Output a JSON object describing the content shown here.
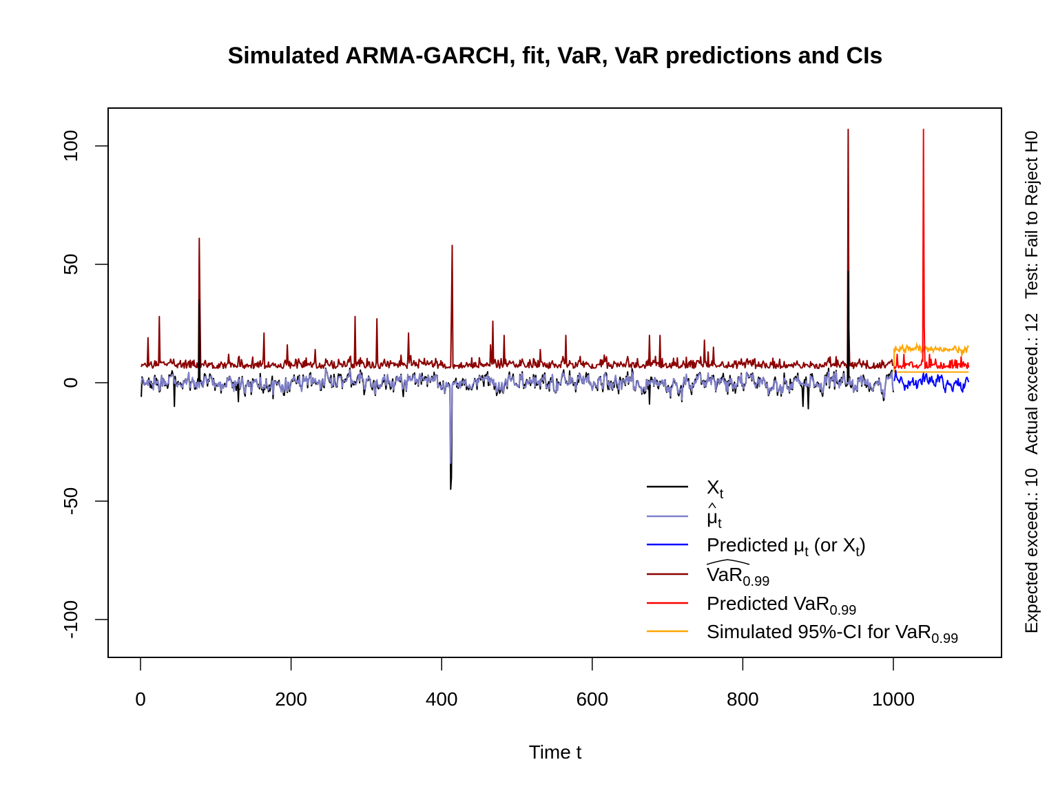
{
  "chart_data": {
    "type": "line",
    "title": "Simulated ARMA-GARCH, fit, VaR, VaR predictions and CIs",
    "xlabel": "Time t",
    "ylabel": "",
    "xlim": [
      -35,
      1150
    ],
    "ylim": [
      -116,
      116
    ],
    "x_ticks": [
      0,
      200,
      400,
      600,
      800,
      1000
    ],
    "x_tick_labels": [
      "0",
      "200",
      "400",
      "600",
      "800",
      "1000"
    ],
    "y_ticks": [
      -100,
      -50,
      0,
      50,
      100
    ],
    "y_tick_labels": [
      "-100",
      "-50",
      "0",
      "50",
      "100"
    ],
    "grid": false,
    "legend_position": "bottom-right",
    "legend": [
      {
        "key": "X",
        "sub": "t",
        "pre": "",
        "post": "",
        "accent": "",
        "color": "#000000"
      },
      {
        "key": "μ",
        "sub": "t",
        "pre": "",
        "post": "",
        "accent": "hat",
        "color": "#7f7fcc"
      },
      {
        "key": "Predicted μ",
        "sub": "t",
        "pre": "",
        "post": " (or X",
        "post_sub": "t",
        "post_tail": ")",
        "accent": "",
        "color": "#0000ff"
      },
      {
        "key": "VaR",
        "sub": "0.99",
        "pre": "",
        "post": "",
        "accent": "widehat",
        "color": "#8b0000"
      },
      {
        "key": "Predicted VaR",
        "sub": "0.99",
        "pre": "",
        "post": "",
        "accent": "",
        "color": "#ff0000"
      },
      {
        "key": "Simulated 95%-CI for VaR",
        "sub": "0.99",
        "pre": "",
        "post": "",
        "accent": "",
        "color": "#ffa500"
      }
    ],
    "side_annotation": "Expected exceed.: 10   Actual exceed.: 12   Test: Fail to Reject H0",
    "fit_range": [
      1,
      1000
    ],
    "prediction_range": [
      1001,
      1100
    ],
    "series": [
      {
        "name": "X_t",
        "color": "#000000",
        "baseline": 0,
        "noise_sd": 2.2,
        "spikes": [
          [
            1,
            -6
          ],
          [
            45,
            -10
          ],
          [
            78,
            35
          ],
          [
            130,
            -8
          ],
          [
            412,
            -45
          ],
          [
            413,
            -40
          ],
          [
            570,
            5
          ],
          [
            676,
            -9
          ],
          [
            880,
            -10
          ],
          [
            887,
            -11
          ],
          [
            940,
            47
          ]
        ]
      },
      {
        "name": "mu_hat_t",
        "color": "#7f7fcc",
        "baseline": 0,
        "noise_sd": 1.8,
        "spikes": [
          [
            412,
            -34
          ],
          [
            413,
            -20
          ]
        ]
      },
      {
        "name": "VaR_hat_0.99",
        "color": "#8b0000",
        "baseline": 6,
        "spikes": [
          [
            10,
            19
          ],
          [
            25,
            28
          ],
          [
            78,
            61
          ],
          [
            79,
            32
          ],
          [
            164,
            21
          ],
          [
            195,
            16
          ],
          [
            232,
            14
          ],
          [
            285,
            28
          ],
          [
            314,
            27
          ],
          [
            356,
            21
          ],
          [
            413,
            30
          ],
          [
            414,
            58
          ],
          [
            465,
            16
          ],
          [
            468,
            26
          ],
          [
            483,
            20
          ],
          [
            531,
            14
          ],
          [
            565,
            20
          ],
          [
            676,
            20
          ],
          [
            690,
            20
          ],
          [
            749,
            18
          ],
          [
            761,
            15
          ],
          [
            940,
            107
          ],
          [
            941,
            23
          ],
          [
            955,
            10
          ]
        ]
      },
      {
        "name": "Predicted_mu_t",
        "color": "#0000ff",
        "baseline": 0,
        "noise_sd": 1.5,
        "spikes": [
          [
            1040,
            4
          ]
        ]
      },
      {
        "name": "Predicted_VaR_0.99",
        "color": "#ff0000",
        "baseline": 6,
        "spikes": [
          [
            1005,
            12
          ],
          [
            1014,
            12
          ],
          [
            1040,
            107
          ],
          [
            1041,
            24
          ],
          [
            1048,
            12
          ],
          [
            1056,
            10
          ],
          [
            1090,
            11
          ]
        ]
      },
      {
        "name": "CI_upper",
        "color": "#ffa500",
        "baseline": 14,
        "spikes": []
      },
      {
        "name": "CI_lower",
        "color": "#ffa500",
        "baseline": 4.5,
        "spikes": []
      }
    ]
  }
}
